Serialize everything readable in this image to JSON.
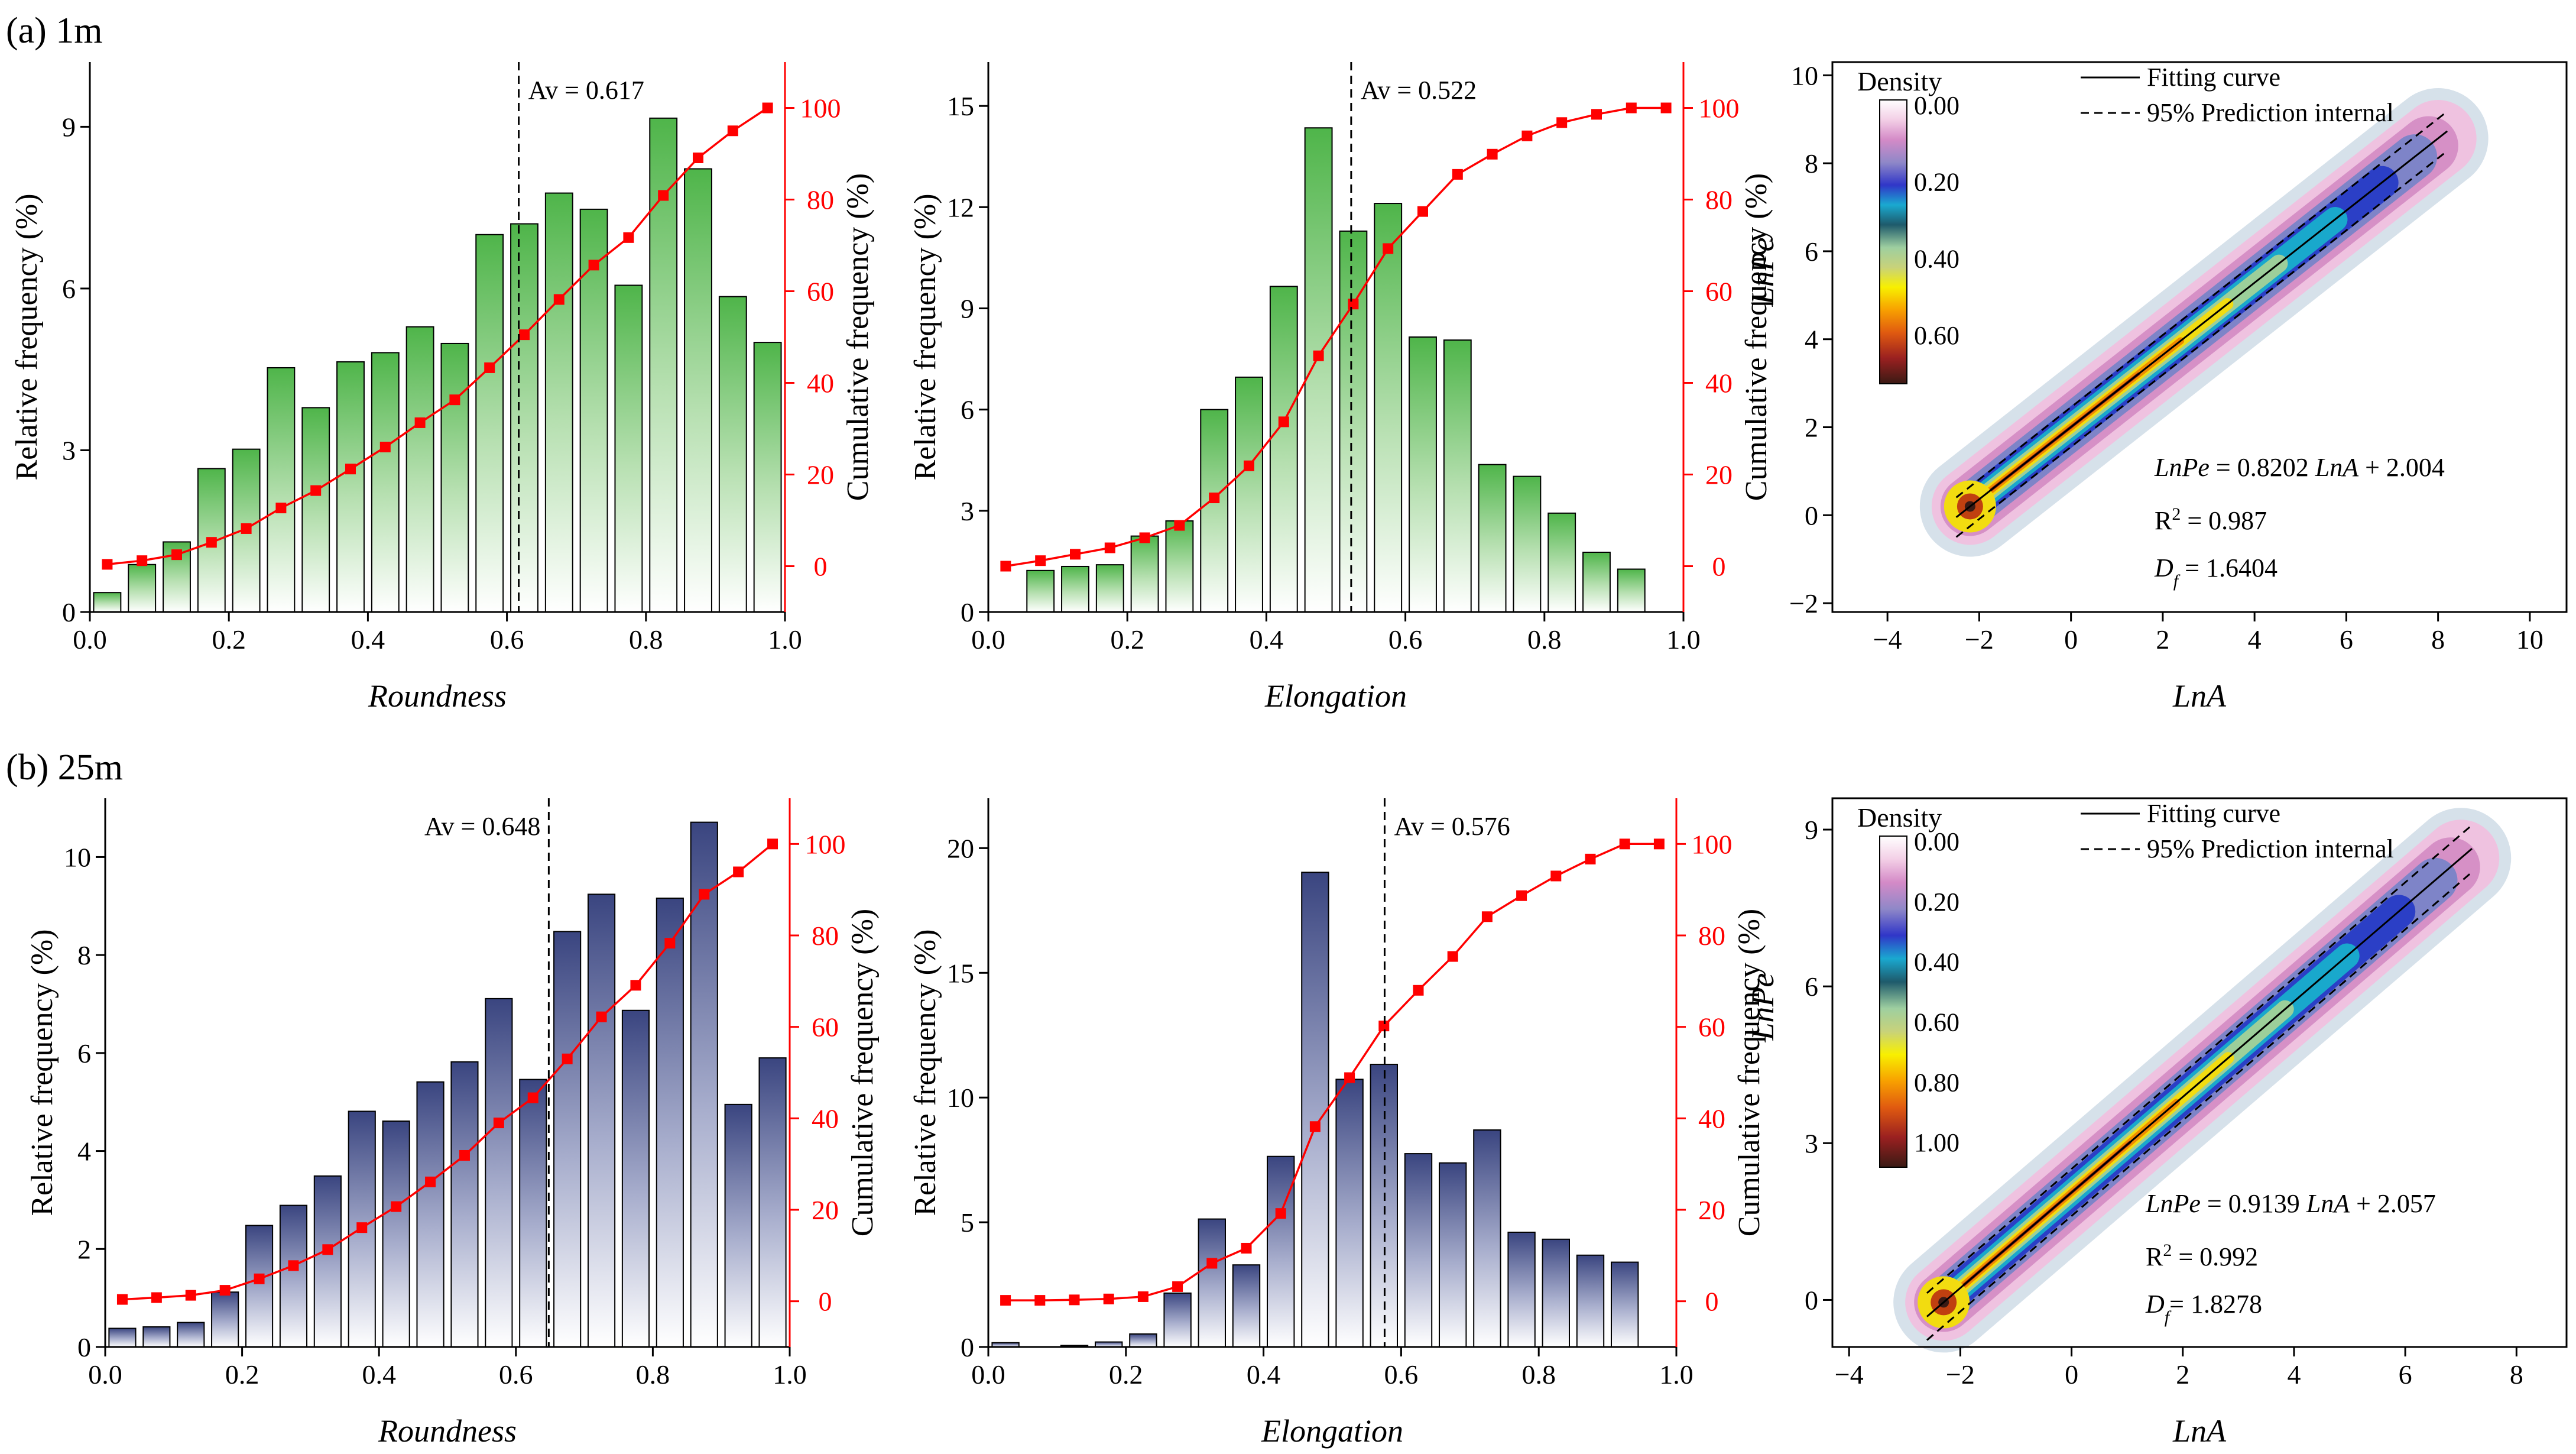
{
  "panels": {
    "a": {
      "label": "(a) 1m"
    },
    "b": {
      "label": "(b) 25m"
    }
  },
  "colors": {
    "green": "#4fb54a",
    "navy": "#3a4580",
    "red": "#ff0000"
  },
  "chart_data": [
    {
      "id": "a-roundness",
      "type": "bar+line",
      "panel": "a",
      "xlabel": "Roundness",
      "ylabel": "Relative frequency (%)",
      "y2label": "Cumulative frequency (%)",
      "xlim": [
        0,
        1.0
      ],
      "ylim": [
        0,
        10.2
      ],
      "y2lim": [
        -10,
        110
      ],
      "xticks": [
        "0.0",
        "0.2",
        "0.4",
        "0.6",
        "0.8",
        "1.0"
      ],
      "yticks": [
        "0",
        "3",
        "6",
        "9"
      ],
      "y2ticks": [
        "0",
        "20",
        "40",
        "60",
        "80",
        "100"
      ],
      "x": [
        0.025,
        0.075,
        0.125,
        0.175,
        0.225,
        0.275,
        0.325,
        0.375,
        0.425,
        0.475,
        0.525,
        0.575,
        0.625,
        0.675,
        0.725,
        0.775,
        0.825,
        0.875,
        0.925,
        0.975
      ],
      "values": [
        0.36,
        0.88,
        1.3,
        2.66,
        3.02,
        4.53,
        3.79,
        4.64,
        4.81,
        5.29,
        4.98,
        7.0,
        7.2,
        7.77,
        7.47,
        6.06,
        9.16,
        8.22,
        5.85,
        5.0
      ],
      "cumulative": [
        0.4,
        1.2,
        2.5,
        5.2,
        8.2,
        12.7,
        16.5,
        21.2,
        26.0,
        31.3,
        36.3,
        43.3,
        50.5,
        58.2,
        65.7,
        71.7,
        80.9,
        89.1,
        95.0,
        100
      ],
      "average_label": "Av = 0.617",
      "average": 0.617,
      "bar_color": "green"
    },
    {
      "id": "a-elongation",
      "type": "bar+line",
      "panel": "a",
      "xlabel": "Elongation",
      "ylabel": "Relative frequency (%)",
      "y2label": "Cumulative frequency (%)",
      "xlim": [
        0,
        1.0
      ],
      "ylim": [
        0,
        16.3
      ],
      "y2lim": [
        -10,
        110
      ],
      "xticks": [
        "0.0",
        "0.2",
        "0.4",
        "0.6",
        "0.8",
        "1.0"
      ],
      "yticks": [
        "0",
        "3",
        "6",
        "9",
        "12",
        "15"
      ],
      "y2ticks": [
        "0",
        "20",
        "40",
        "60",
        "80",
        "100"
      ],
      "x": [
        0.025,
        0.075,
        0.125,
        0.175,
        0.225,
        0.275,
        0.325,
        0.375,
        0.425,
        0.475,
        0.525,
        0.575,
        0.625,
        0.675,
        0.725,
        0.775,
        0.825,
        0.875,
        0.925,
        0.975
      ],
      "values": [
        0,
        1.23,
        1.35,
        1.4,
        2.25,
        2.7,
        6.0,
        6.96,
        9.65,
        14.35,
        11.29,
        12.11,
        8.15,
        8.06,
        4.37,
        4.02,
        2.93,
        1.77,
        1.27,
        0
      ],
      "cumulative": [
        0,
        1.2,
        2.6,
        4.0,
        6.2,
        8.9,
        14.9,
        21.9,
        31.5,
        45.9,
        57.2,
        69.3,
        77.4,
        85.5,
        89.9,
        93.9,
        96.8,
        98.6,
        100,
        100
      ],
      "average_label": "Av = 0.522",
      "average": 0.522,
      "bar_color": "green"
    },
    {
      "id": "a-density",
      "type": "density-contour",
      "panel": "a",
      "xlabel": "LnA",
      "ylabel": "LnPe",
      "xlim": [
        -5.2,
        10.8
      ],
      "ylim": [
        -2.2,
        10.3
      ],
      "xticks": [
        -4,
        -2,
        0,
        2,
        4,
        6,
        8,
        10
      ],
      "yticks": [
        -2,
        0,
        2,
        4,
        6,
        8,
        10
      ],
      "legend_title": "Density",
      "colorbar_ticks": [
        "0.00",
        "0.20",
        "0.40",
        "0.60"
      ],
      "fit_label": "Fitting curve",
      "pi_label": "95% Prediction internal",
      "equation": {
        "lhs": "LnPe",
        "rhs1": " = 0.8202 ",
        "var": "LnA",
        "rhs2": " + 2.004"
      },
      "r2": {
        "base": "R",
        "sup": "2",
        "rest": " = 0.987"
      },
      "df": {
        "base": "D",
        "sub": "f",
        "rest": " = 1.6404"
      },
      "slope": 0.8202,
      "intercept": 2.004,
      "data_x_range": [
        -2.2,
        8.0
      ]
    },
    {
      "id": "b-roundness",
      "type": "bar+line",
      "panel": "b",
      "xlabel": "Roundness",
      "ylabel": "Relative frequency (%)",
      "y2label": "Cumulative frequency (%)",
      "xlim": [
        0,
        1.0
      ],
      "ylim": [
        0,
        11.2
      ],
      "y2lim": [
        -10,
        110
      ],
      "xticks": [
        "0.0",
        "0.2",
        "0.4",
        "0.6",
        "0.8",
        "1.0"
      ],
      "yticks": [
        "0",
        "2",
        "4",
        "6",
        "8",
        "10"
      ],
      "y2ticks": [
        "0",
        "20",
        "40",
        "60",
        "80",
        "100"
      ],
      "x": [
        0.025,
        0.075,
        0.125,
        0.175,
        0.225,
        0.275,
        0.325,
        0.375,
        0.425,
        0.475,
        0.525,
        0.575,
        0.625,
        0.675,
        0.725,
        0.775,
        0.825,
        0.875,
        0.925,
        0.975
      ],
      "values": [
        0.38,
        0.41,
        0.5,
        1.12,
        2.48,
        2.89,
        3.49,
        4.81,
        4.61,
        5.41,
        5.82,
        7.11,
        5.46,
        8.48,
        9.24,
        6.87,
        9.16,
        10.71,
        4.95,
        5.9
      ],
      "cumulative": [
        0.4,
        0.8,
        1.3,
        2.4,
        4.9,
        7.8,
        11.3,
        16.1,
        20.7,
        26.1,
        31.9,
        39.0,
        44.5,
        53.0,
        62.2,
        69.1,
        78.3,
        89.0,
        93.9,
        100
      ],
      "average_label": "Av = 0.648",
      "average": 0.648,
      "bar_color": "navy"
    },
    {
      "id": "b-elongation",
      "type": "bar+line",
      "panel": "b",
      "xlabel": "Elongation",
      "ylabel": "Relative frequency (%)",
      "y2label": "Cumulative frequency (%)",
      "xlim": [
        0,
        1.0
      ],
      "ylim": [
        0,
        22.0
      ],
      "y2lim": [
        -10,
        110
      ],
      "xticks": [
        "0.0",
        "0.2",
        "0.4",
        "0.6",
        "0.8",
        "1.0"
      ],
      "yticks": [
        "0",
        "5",
        "10",
        "15",
        "20"
      ],
      "y2ticks": [
        "0",
        "20",
        "40",
        "60",
        "80",
        "100"
      ],
      "x": [
        0.025,
        0.075,
        0.125,
        0.175,
        0.225,
        0.275,
        0.325,
        0.375,
        0.425,
        0.475,
        0.525,
        0.575,
        0.625,
        0.675,
        0.725,
        0.775,
        0.825,
        0.875,
        0.925,
        0.975
      ],
      "values": [
        0.17,
        0,
        0.06,
        0.2,
        0.52,
        2.16,
        5.13,
        3.29,
        7.64,
        19.03,
        10.73,
        11.33,
        7.75,
        7.38,
        8.7,
        4.6,
        4.32,
        3.68,
        3.4,
        0
      ],
      "cumulative": [
        0.2,
        0.2,
        0.3,
        0.5,
        1.0,
        3.2,
        8.3,
        11.6,
        19.2,
        38.2,
        48.9,
        60.2,
        68.0,
        75.4,
        84.1,
        88.7,
        93.0,
        96.7,
        100,
        100
      ],
      "average_label": "Av = 0.576",
      "average": 0.576,
      "bar_color": "navy"
    },
    {
      "id": "b-density",
      "type": "density-contour",
      "panel": "b",
      "xlabel": "LnA",
      "ylabel": "LnPe",
      "xlim": [
        -4.3,
        8.9
      ],
      "ylim": [
        -0.9,
        9.6
      ],
      "xticks": [
        -4,
        -2,
        0,
        2,
        4,
        6,
        8
      ],
      "yticks": [
        0,
        3,
        6,
        9
      ],
      "legend_title": "Density",
      "colorbar_ticks": [
        "0.00",
        "0.20",
        "0.40",
        "0.60",
        "0.80",
        "1.00"
      ],
      "fit_label": "Fitting curve",
      "pi_label": "95% Prediction internal",
      "equation": {
        "lhs": "LnPe",
        "rhs1": " = 0.9139 ",
        "var": "LnA",
        "rhs2": " + 2.057"
      },
      "r2": {
        "base": "R",
        "sup": "2",
        "rest": " = 0.992"
      },
      "df": {
        "base": "D",
        "sub": "f",
        "rest": "= 1.8278"
      },
      "slope": 0.9139,
      "intercept": 2.057,
      "data_x_range": [
        -2.3,
        7.0
      ]
    }
  ]
}
